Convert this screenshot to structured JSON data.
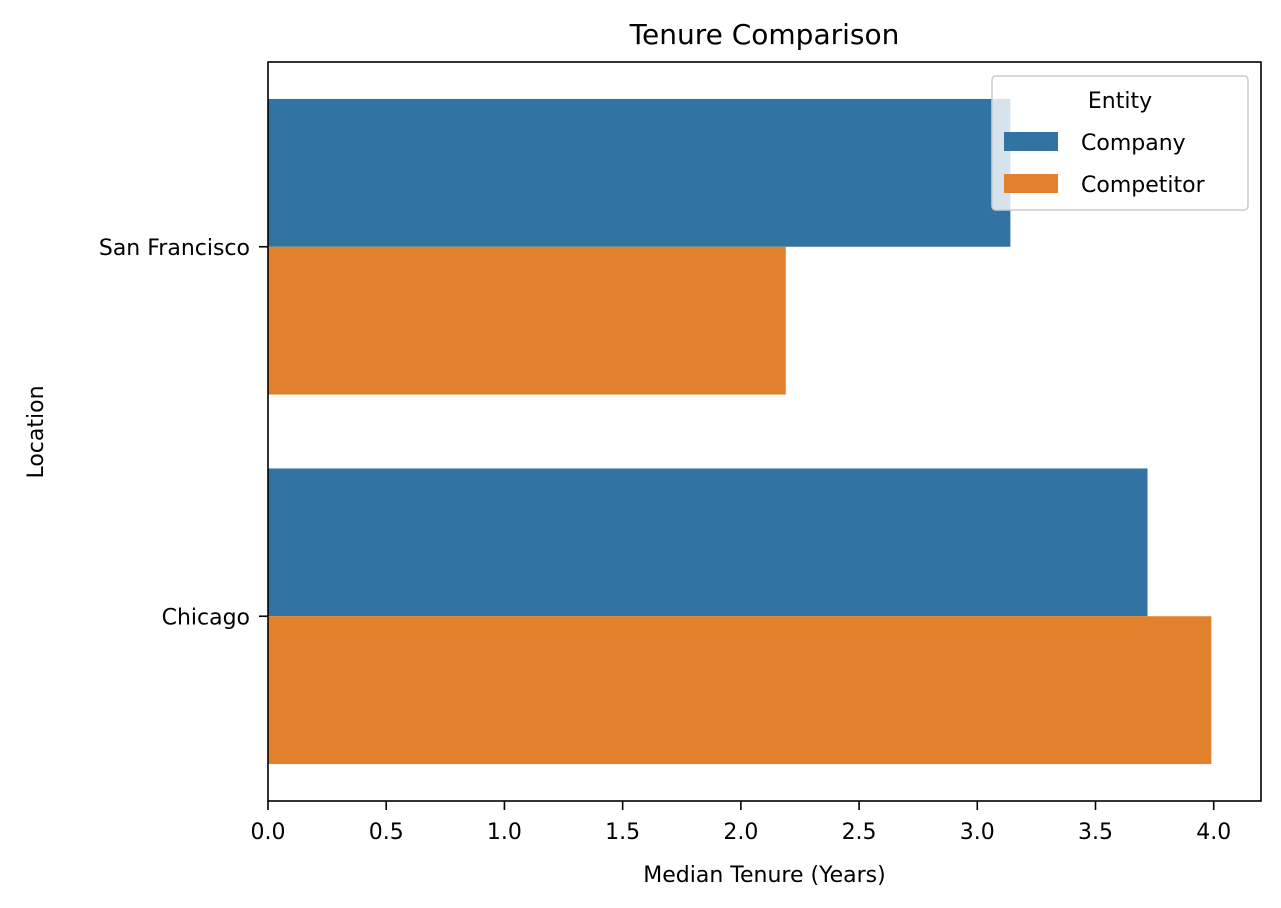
{
  "chart_data": {
    "type": "bar",
    "orientation": "horizontal",
    "title": "Tenure Comparison",
    "xlabel": "Median Tenure (Years)",
    "ylabel": "Location",
    "categories": [
      "San Francisco",
      "Chicago"
    ],
    "series": [
      {
        "name": "Company",
        "color": "#3274a1",
        "values": [
          3.14,
          3.72
        ]
      },
      {
        "name": "Competitor",
        "color": "#e1812c",
        "values": [
          2.19,
          3.99
        ]
      }
    ],
    "xlim": [
      0,
      4.2
    ],
    "xticks": [
      "0.0",
      "0.5",
      "1.0",
      "1.5",
      "2.0",
      "2.5",
      "3.0",
      "3.5",
      "4.0"
    ],
    "grid": false,
    "legend": {
      "title": "Entity",
      "placement": "top-right"
    }
  }
}
